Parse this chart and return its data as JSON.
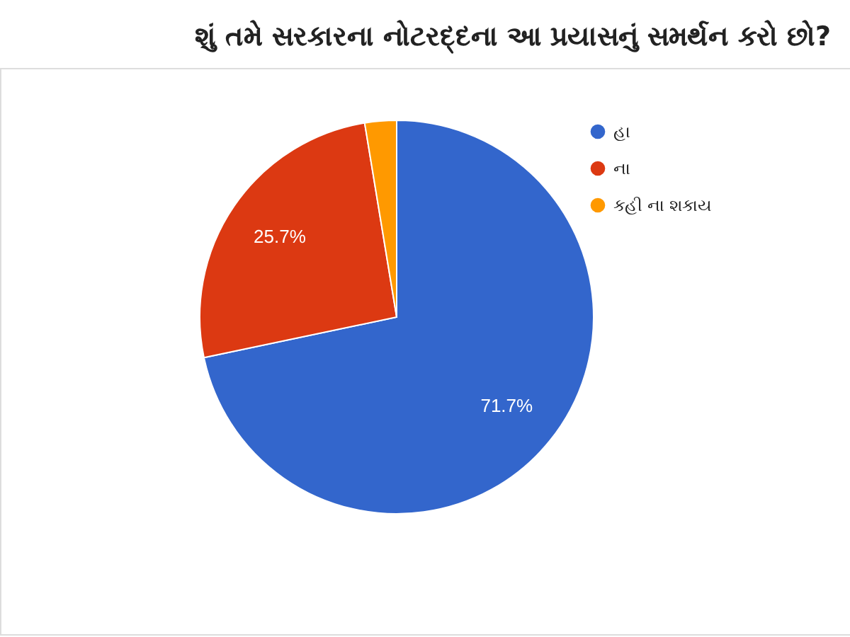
{
  "chart_data": {
    "type": "pie",
    "title": "શું તમે સરકારના નોટરદ્દના આ પ્રયાસનું સમર્થન કરો છો?",
    "categories": [
      "હા",
      "ના",
      "કહી ના શકાય"
    ],
    "values": [
      71.7,
      25.7,
      2.6
    ],
    "colors": [
      "#3366cc",
      "#dc3912",
      "#ff9900"
    ],
    "value_labels": [
      "71.7%",
      "25.7%",
      null
    ],
    "legend": "top right"
  }
}
